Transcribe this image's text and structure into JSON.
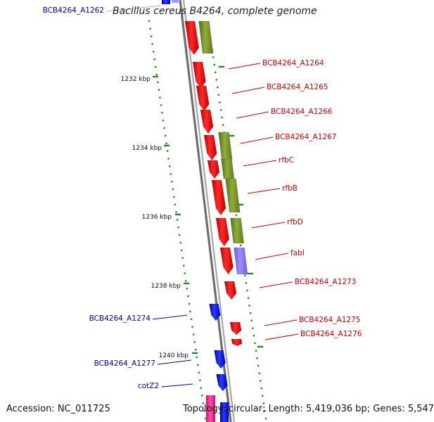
{
  "title": "Bacillus cereus B4264, complete genome",
  "accession": "Accession: NC_011725",
  "topology": "Topology: circular; Length: 5,419,036 bp; Genes: 5,547",
  "kbp_labels": [
    "1232 kbp",
    "1234 kbp",
    "1236 kbp",
    "1238 kbp",
    "1240 kbp"
  ],
  "genes_right": [
    "BCB4264_A1264",
    "BCB4264_A1265",
    "BCB4264_A1266",
    "BCB4264_A1267",
    "rfbC",
    "rfbB",
    "rfbD",
    "fabI",
    "BCB4264_A1273",
    "BCB4264_A1275",
    "BCB4264_A1276"
  ],
  "genes_left": [
    "BCB4264_A1262",
    "BCB4264_A1274",
    "BCB4264_A1277",
    "cotZ2"
  ],
  "colors": {
    "strand_forward": "#ff0000",
    "strand_reverse": "#0000ff",
    "cog_green": "#6b8e23",
    "cog_purple": "#8470d8",
    "pink": "#ff1493",
    "ticks": "#228b22",
    "backbone": "#808080",
    "label_red": "#cc0000",
    "label_blue": "#0000aa"
  }
}
